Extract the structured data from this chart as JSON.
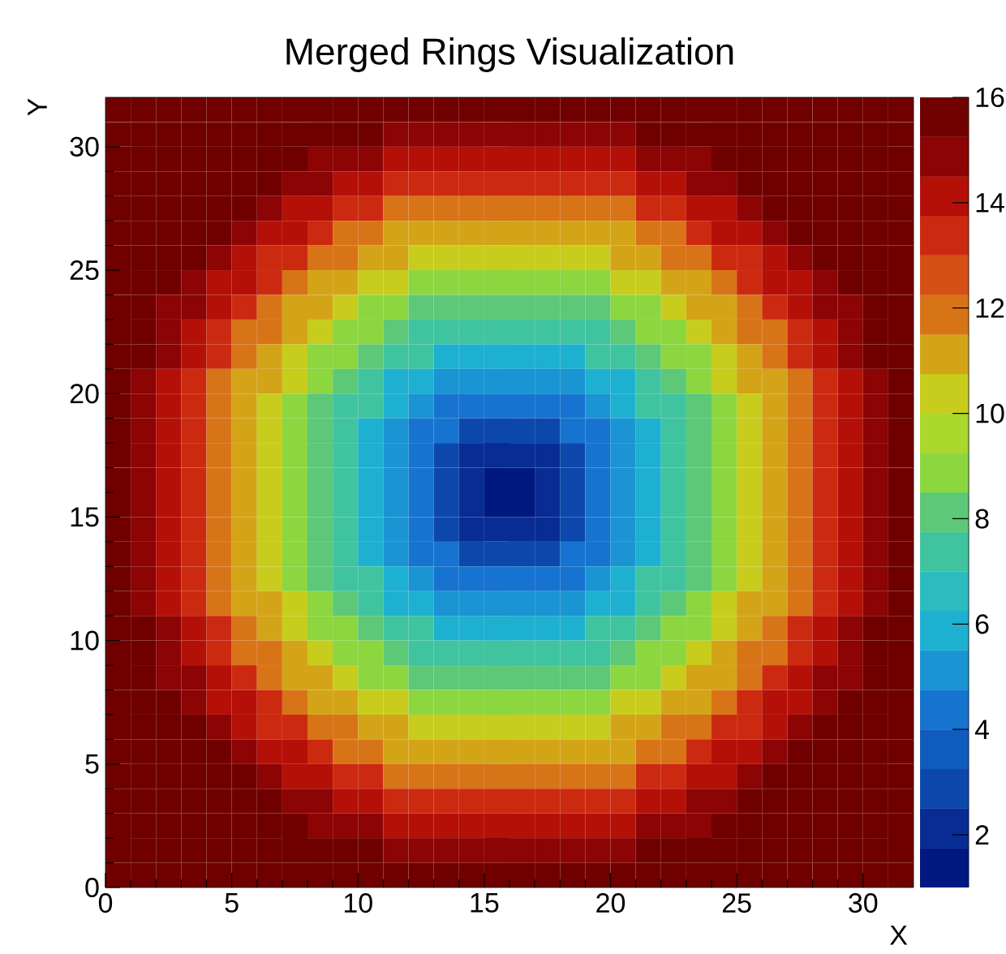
{
  "chart_data": {
    "type": "heatmap",
    "title": "Merged Rings Visualization",
    "xlabel": "X",
    "ylabel": "Y",
    "x": [
      0.5,
      1.5,
      2.5,
      3.5,
      4.5,
      5.5,
      6.5,
      7.5,
      8.5,
      9.5,
      10.5,
      11.5,
      12.5,
      13.5,
      14.5,
      15.5,
      16.5,
      17.5,
      18.5,
      19.5,
      20.5,
      21.5,
      22.5,
      23.5,
      24.5,
      25.5,
      26.5,
      27.5,
      28.5,
      29.5,
      30.5,
      31.5
    ],
    "y": [
      31.5,
      30.5,
      29.5,
      28.5,
      27.5,
      26.5,
      25.5,
      24.5,
      23.5,
      22.5,
      21.5,
      20.5,
      19.5,
      18.5,
      17.5,
      16.5,
      15.5,
      14.5,
      13.5,
      12.5,
      11.5,
      10.5,
      9.5,
      8.5,
      7.5,
      6.5,
      5.5,
      4.5,
      3.5,
      2.5,
      1.5,
      0.5
    ],
    "xlim": [
      0,
      32
    ],
    "ylim": [
      0,
      32
    ],
    "xticks": [
      0,
      5,
      10,
      15,
      20,
      25,
      30
    ],
    "yticks": [
      0,
      5,
      10,
      15,
      20,
      25,
      30
    ],
    "clim": [
      1,
      16
    ],
    "cticks": [
      2,
      4,
      6,
      8,
      10,
      12,
      14,
      16
    ],
    "cells": [
      [
        16,
        16,
        16,
        16,
        16,
        16,
        16,
        16,
        16,
        16,
        16,
        16,
        16,
        16,
        16,
        16,
        16,
        16,
        16,
        16,
        16,
        16,
        16,
        16,
        16,
        16,
        16,
        16,
        16,
        16,
        16,
        16
      ],
      [
        16,
        16,
        16,
        16,
        16,
        16,
        16,
        16,
        16,
        16,
        16,
        15,
        15,
        15,
        15,
        15,
        15,
        15,
        15,
        15,
        15,
        16,
        16,
        16,
        16,
        16,
        16,
        16,
        16,
        16,
        16,
        16
      ],
      [
        16,
        16,
        16,
        16,
        16,
        16,
        16,
        16,
        15,
        15,
        15,
        14,
        14,
        14,
        14,
        14,
        14,
        14,
        14,
        14,
        14,
        15,
        15,
        15,
        16,
        16,
        16,
        16,
        16,
        16,
        16,
        16
      ],
      [
        16,
        16,
        16,
        16,
        16,
        16,
        16,
        15,
        15,
        14,
        14,
        13,
        13,
        13,
        13,
        13,
        13,
        13,
        13,
        13,
        13,
        14,
        14,
        15,
        15,
        16,
        16,
        16,
        16,
        16,
        16,
        16
      ],
      [
        16,
        16,
        16,
        16,
        16,
        16,
        15,
        14,
        14,
        13,
        13,
        12,
        12,
        12,
        12,
        12,
        12,
        12,
        12,
        12,
        12,
        13,
        13,
        14,
        14,
        15,
        16,
        16,
        16,
        16,
        16,
        16
      ],
      [
        16,
        16,
        16,
        16,
        16,
        15,
        14,
        14,
        13,
        12,
        12,
        11,
        11,
        11,
        11,
        11,
        11,
        11,
        11,
        11,
        11,
        12,
        12,
        13,
        14,
        14,
        15,
        16,
        16,
        16,
        16,
        16
      ],
      [
        16,
        16,
        16,
        16,
        15,
        14,
        13,
        13,
        12,
        12,
        11,
        11,
        10,
        10,
        10,
        10,
        10,
        10,
        10,
        10,
        11,
        11,
        12,
        12,
        13,
        13,
        14,
        15,
        16,
        16,
        16,
        16
      ],
      [
        16,
        16,
        16,
        15,
        14,
        14,
        13,
        12,
        11,
        11,
        10,
        10,
        9,
        9,
        9,
        9,
        9,
        9,
        9,
        9,
        10,
        10,
        11,
        11,
        12,
        13,
        14,
        14,
        15,
        16,
        16,
        16
      ],
      [
        16,
        16,
        15,
        15,
        14,
        13,
        12,
        11,
        11,
        10,
        9,
        9,
        8,
        8,
        8,
        8,
        8,
        8,
        8,
        8,
        9,
        9,
        10,
        11,
        11,
        12,
        13,
        14,
        15,
        15,
        16,
        16
      ],
      [
        16,
        16,
        15,
        14,
        13,
        12,
        12,
        11,
        10,
        9,
        9,
        8,
        7,
        7,
        7,
        7,
        7,
        7,
        7,
        7,
        8,
        9,
        9,
        10,
        11,
        12,
        12,
        13,
        14,
        15,
        16,
        16
      ],
      [
        16,
        16,
        15,
        14,
        13,
        12,
        11,
        10,
        9,
        9,
        8,
        7,
        7,
        6,
        6,
        6,
        6,
        6,
        6,
        7,
        7,
        8,
        9,
        9,
        10,
        11,
        12,
        13,
        14,
        15,
        16,
        16
      ],
      [
        16,
        15,
        14,
        13,
        12,
        11,
        11,
        10,
        9,
        8,
        7,
        6,
        6,
        5,
        5,
        5,
        5,
        5,
        5,
        6,
        6,
        7,
        8,
        9,
        10,
        11,
        11,
        12,
        13,
        14,
        15,
        16
      ],
      [
        16,
        15,
        14,
        13,
        12,
        11,
        10,
        9,
        8,
        7,
        7,
        6,
        5,
        4,
        4,
        4,
        4,
        4,
        4,
        5,
        6,
        7,
        7,
        8,
        9,
        10,
        11,
        12,
        13,
        14,
        15,
        16
      ],
      [
        16,
        15,
        14,
        13,
        12,
        11,
        10,
        9,
        8,
        7,
        6,
        5,
        4,
        4,
        3,
        3,
        3,
        3,
        4,
        4,
        5,
        6,
        7,
        8,
        9,
        10,
        11,
        12,
        13,
        14,
        15,
        16
      ],
      [
        16,
        15,
        14,
        13,
        12,
        11,
        10,
        9,
        8,
        7,
        6,
        5,
        4,
        3,
        2,
        2,
        2,
        2,
        3,
        4,
        5,
        6,
        7,
        8,
        9,
        10,
        11,
        12,
        13,
        14,
        15,
        16
      ],
      [
        16,
        15,
        14,
        13,
        12,
        11,
        10,
        9,
        8,
        7,
        6,
        5,
        4,
        3,
        2,
        1,
        1,
        2,
        3,
        4,
        5,
        6,
        7,
        8,
        9,
        10,
        11,
        12,
        13,
        14,
        15,
        16
      ],
      [
        16,
        15,
        14,
        13,
        12,
        11,
        10,
        9,
        8,
        7,
        6,
        5,
        4,
        3,
        2,
        1,
        1,
        2,
        3,
        4,
        5,
        6,
        7,
        8,
        9,
        10,
        11,
        12,
        13,
        14,
        15,
        16
      ],
      [
        16,
        15,
        14,
        13,
        12,
        11,
        10,
        9,
        8,
        7,
        6,
        5,
        4,
        3,
        2,
        2,
        2,
        2,
        3,
        4,
        5,
        6,
        7,
        8,
        9,
        10,
        11,
        12,
        13,
        14,
        15,
        16
      ],
      [
        16,
        15,
        14,
        13,
        12,
        11,
        10,
        9,
        8,
        7,
        6,
        5,
        4,
        4,
        3,
        3,
        3,
        3,
        4,
        4,
        5,
        6,
        7,
        8,
        9,
        10,
        11,
        12,
        13,
        14,
        15,
        16
      ],
      [
        16,
        15,
        14,
        13,
        12,
        11,
        10,
        9,
        8,
        7,
        7,
        6,
        5,
        4,
        4,
        4,
        4,
        4,
        4,
        5,
        6,
        7,
        7,
        8,
        9,
        10,
        11,
        12,
        13,
        14,
        15,
        16
      ],
      [
        16,
        15,
        14,
        13,
        12,
        11,
        11,
        10,
        9,
        8,
        7,
        6,
        6,
        5,
        5,
        5,
        5,
        5,
        5,
        6,
        6,
        7,
        8,
        9,
        10,
        11,
        11,
        12,
        13,
        14,
        15,
        16
      ],
      [
        16,
        16,
        15,
        14,
        13,
        12,
        11,
        10,
        9,
        9,
        8,
        7,
        7,
        6,
        6,
        6,
        6,
        6,
        6,
        7,
        7,
        8,
        9,
        9,
        10,
        11,
        12,
        13,
        14,
        15,
        16,
        16
      ],
      [
        16,
        16,
        15,
        14,
        13,
        12,
        12,
        11,
        10,
        9,
        9,
        8,
        7,
        7,
        7,
        7,
        7,
        7,
        7,
        7,
        8,
        9,
        9,
        10,
        11,
        12,
        12,
        13,
        14,
        15,
        16,
        16
      ],
      [
        16,
        16,
        15,
        15,
        14,
        13,
        12,
        11,
        11,
        10,
        9,
        9,
        8,
        8,
        8,
        8,
        8,
        8,
        8,
        8,
        9,
        9,
        10,
        11,
        11,
        12,
        13,
        14,
        15,
        15,
        16,
        16
      ],
      [
        16,
        16,
        16,
        15,
        14,
        14,
        13,
        12,
        11,
        11,
        10,
        10,
        9,
        9,
        9,
        9,
        9,
        9,
        9,
        9,
        10,
        10,
        11,
        11,
        12,
        13,
        14,
        14,
        15,
        16,
        16,
        16
      ],
      [
        16,
        16,
        16,
        16,
        15,
        14,
        13,
        13,
        12,
        12,
        11,
        11,
        10,
        10,
        10,
        10,
        10,
        10,
        10,
        10,
        11,
        11,
        12,
        12,
        13,
        13,
        14,
        15,
        16,
        16,
        16,
        16
      ],
      [
        16,
        16,
        16,
        16,
        16,
        15,
        14,
        14,
        13,
        12,
        12,
        11,
        11,
        11,
        11,
        11,
        11,
        11,
        11,
        11,
        11,
        12,
        12,
        13,
        14,
        14,
        15,
        16,
        16,
        16,
        16,
        16
      ],
      [
        16,
        16,
        16,
        16,
        16,
        16,
        15,
        14,
        14,
        13,
        13,
        12,
        12,
        12,
        12,
        12,
        12,
        12,
        12,
        12,
        12,
        13,
        13,
        14,
        14,
        15,
        16,
        16,
        16,
        16,
        16,
        16
      ],
      [
        16,
        16,
        16,
        16,
        16,
        16,
        16,
        15,
        15,
        14,
        14,
        13,
        13,
        13,
        13,
        13,
        13,
        13,
        13,
        13,
        13,
        14,
        14,
        15,
        15,
        16,
        16,
        16,
        16,
        16,
        16,
        16
      ],
      [
        16,
        16,
        16,
        16,
        16,
        16,
        16,
        16,
        15,
        15,
        15,
        14,
        14,
        14,
        14,
        14,
        14,
        14,
        14,
        14,
        14,
        15,
        15,
        15,
        16,
        16,
        16,
        16,
        16,
        16,
        16,
        16
      ],
      [
        16,
        16,
        16,
        16,
        16,
        16,
        16,
        16,
        16,
        16,
        16,
        15,
        15,
        15,
        15,
        15,
        15,
        15,
        15,
        15,
        15,
        16,
        16,
        16,
        16,
        16,
        16,
        16,
        16,
        16,
        16,
        16
      ],
      [
        16,
        16,
        16,
        16,
        16,
        16,
        16,
        16,
        16,
        16,
        16,
        16,
        16,
        16,
        16,
        16,
        16,
        16,
        16,
        16,
        16,
        16,
        16,
        16,
        16,
        16,
        16,
        16,
        16,
        16,
        16,
        16
      ]
    ]
  }
}
